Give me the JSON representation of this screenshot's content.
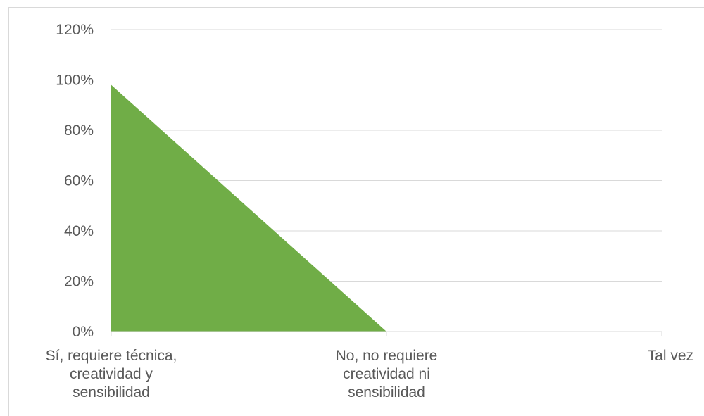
{
  "chart_data": {
    "type": "area",
    "title": "",
    "xlabel": "",
    "ylabel": "",
    "categories": [
      [
        "Sí, requiere técnica,",
        "creatividad y",
        "sensibilidad"
      ],
      [
        "No, no requiere",
        "creatividad ni",
        "sensibilidad"
      ],
      [
        "Tal vez"
      ]
    ],
    "series": [
      {
        "values": [
          98,
          0,
          0
        ],
        "color": "#70ad47"
      }
    ],
    "ylim": [
      0,
      120
    ],
    "yticks": [
      0,
      20,
      40,
      60,
      80,
      100,
      120
    ],
    "ytick_labels": [
      "0%",
      "20%",
      "40%",
      "60%",
      "80%",
      "100%",
      "120%"
    ],
    "grid": true,
    "legend": "none"
  }
}
